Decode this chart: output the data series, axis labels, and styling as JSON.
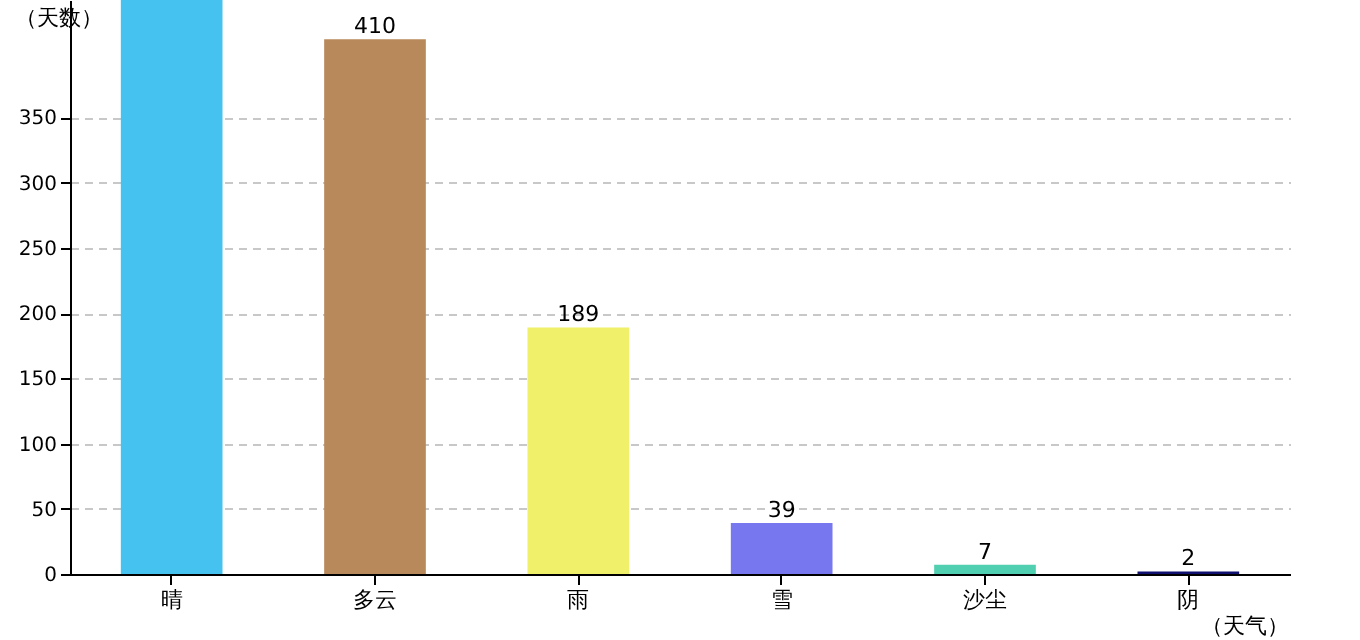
{
  "chart_data": {
    "type": "bar",
    "xlabel": "（天气）",
    "ylabel": "（天数）",
    "categories": [
      "晴",
      "多云",
      "雨",
      "雪",
      "沙尘",
      "阴"
    ],
    "values": [
      440,
      410,
      189,
      39,
      7,
      2
    ],
    "colors": [
      "#45c2f0",
      "#b8895a",
      "#f0f06a",
      "#7777f0",
      "#50d0b0",
      "#101070"
    ],
    "value_labels": [
      null,
      "410",
      "189",
      "39",
      "7",
      "2"
    ],
    "ylim": [
      0,
      440
    ],
    "yticks": [
      0,
      50,
      100,
      150,
      200,
      250,
      300,
      350
    ],
    "grid": "y"
  }
}
